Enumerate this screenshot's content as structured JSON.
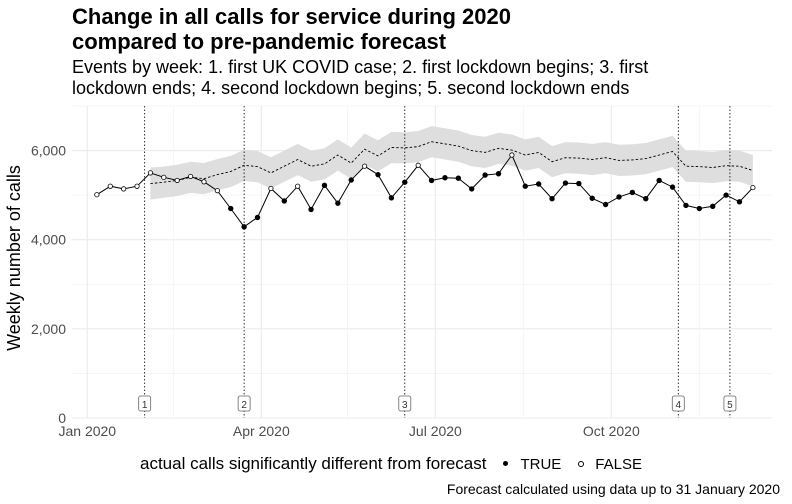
{
  "title_line1": "Change in all calls for service during 2020",
  "title_line2": "compared to pre-pandemic forecast",
  "subtitle_line1": "Events by week: 1. first UK COVID case; 2. first lockdown begins; 3. first",
  "subtitle_line2": "lockdown ends; 4. second lockdown begins; 5. second lockdown ends",
  "caption": "Forecast calculated using data up to 31 January 2020",
  "legend": {
    "title": "actual calls significantly different from forecast",
    "true_label": "TRUE",
    "false_label": "FALSE"
  },
  "colors": {
    "band": "#dedede",
    "grid": "#ebebeb",
    "line": "#000000"
  },
  "chart_data": {
    "type": "line",
    "ylabel": "Weekly number of calls",
    "xlabel": "",
    "ylim": [
      0,
      7000
    ],
    "xlim": [
      "2019-12-24",
      "2020-12-24"
    ],
    "x_ticks": [
      {
        "date": "2020-01-01",
        "label": "Jan 2020"
      },
      {
        "date": "2020-04-01",
        "label": "Apr 2020"
      },
      {
        "date": "2020-07-01",
        "label": "Jul 2020"
      },
      {
        "date": "2020-10-01",
        "label": "Oct 2020"
      }
    ],
    "y_ticks": [
      {
        "value": 0,
        "label": "0"
      },
      {
        "value": 2000,
        "label": "2,000"
      },
      {
        "value": 4000,
        "label": "4,000"
      },
      {
        "value": 6000,
        "label": "6,000"
      }
    ],
    "events": [
      {
        "label": "1",
        "date": "2020-01-31"
      },
      {
        "label": "2",
        "date": "2020-03-23"
      },
      {
        "label": "3",
        "date": "2020-06-15"
      },
      {
        "label": "4",
        "date": "2020-11-05"
      },
      {
        "label": "5",
        "date": "2020-12-02"
      }
    ],
    "actual": {
      "dates": [
        "2020-01-06",
        "2020-01-13",
        "2020-01-20",
        "2020-01-27",
        "2020-02-03",
        "2020-02-10",
        "2020-02-17",
        "2020-02-24",
        "2020-03-02",
        "2020-03-09",
        "2020-03-16",
        "2020-03-23",
        "2020-03-30",
        "2020-04-06",
        "2020-04-13",
        "2020-04-20",
        "2020-04-27",
        "2020-05-04",
        "2020-05-11",
        "2020-05-18",
        "2020-05-25",
        "2020-06-01",
        "2020-06-08",
        "2020-06-15",
        "2020-06-22",
        "2020-06-29",
        "2020-07-06",
        "2020-07-13",
        "2020-07-20",
        "2020-07-27",
        "2020-08-03",
        "2020-08-10",
        "2020-08-17",
        "2020-08-24",
        "2020-08-31",
        "2020-09-07",
        "2020-09-14",
        "2020-09-21",
        "2020-09-28",
        "2020-10-05",
        "2020-10-12",
        "2020-10-19",
        "2020-10-26",
        "2020-11-02",
        "2020-11-09",
        "2020-11-16",
        "2020-11-23",
        "2020-11-30",
        "2020-12-07",
        "2020-12-14"
      ],
      "values": [
        5010,
        5200,
        5140,
        5200,
        5500,
        5400,
        5330,
        5420,
        5300,
        5100,
        4700,
        4290,
        4500,
        5150,
        4870,
        5200,
        4680,
        5220,
        4820,
        5340,
        5650,
        5460,
        4940,
        5290,
        5670,
        5330,
        5390,
        5380,
        5140,
        5450,
        5480,
        5900,
        5200,
        5250,
        4920,
        5270,
        5260,
        4930,
        4790,
        4960,
        5060,
        4920,
        5330,
        5180,
        4770,
        4700,
        4750,
        5000,
        4850,
        5170
      ],
      "significant": [
        false,
        false,
        false,
        false,
        false,
        false,
        false,
        false,
        false,
        false,
        true,
        true,
        true,
        false,
        true,
        false,
        true,
        true,
        true,
        true,
        false,
        true,
        true,
        true,
        false,
        true,
        true,
        true,
        true,
        true,
        true,
        false,
        true,
        true,
        true,
        true,
        true,
        true,
        true,
        true,
        true,
        true,
        true,
        true,
        true,
        true,
        true,
        true,
        true,
        false
      ]
    },
    "forecast": {
      "dates": [
        "2020-02-03",
        "2020-02-10",
        "2020-02-17",
        "2020-02-24",
        "2020-03-02",
        "2020-03-09",
        "2020-03-16",
        "2020-03-23",
        "2020-03-30",
        "2020-04-06",
        "2020-04-13",
        "2020-04-20",
        "2020-04-27",
        "2020-05-04",
        "2020-05-11",
        "2020-05-18",
        "2020-05-25",
        "2020-06-01",
        "2020-06-08",
        "2020-06-15",
        "2020-06-22",
        "2020-06-29",
        "2020-07-06",
        "2020-07-13",
        "2020-07-20",
        "2020-07-27",
        "2020-08-03",
        "2020-08-10",
        "2020-08-17",
        "2020-08-24",
        "2020-08-31",
        "2020-09-07",
        "2020-09-14",
        "2020-09-21",
        "2020-09-28",
        "2020-10-05",
        "2020-10-12",
        "2020-10-19",
        "2020-10-26",
        "2020-11-02",
        "2020-11-09",
        "2020-11-16",
        "2020-11-23",
        "2020-11-30",
        "2020-12-07",
        "2020-12-14"
      ],
      "values": [
        5260,
        5290,
        5330,
        5400,
        5370,
        5460,
        5530,
        5670,
        5640,
        5500,
        5650,
        5800,
        5650,
        5700,
        5900,
        5720,
        6030,
        5880,
        6070,
        6060,
        6090,
        6200,
        6150,
        6100,
        6000,
        5960,
        6050,
        6010,
        5900,
        5960,
        5750,
        5840,
        5830,
        5800,
        5840,
        5780,
        5790,
        5820,
        5900,
        5980,
        5650,
        5640,
        5620,
        5660,
        5650,
        5550
      ],
      "lower": [
        4900,
        4940,
        4980,
        5050,
        5020,
        5110,
        5180,
        5320,
        5290,
        5150,
        5300,
        5450,
        5300,
        5350,
        5550,
        5370,
        5680,
        5530,
        5720,
        5710,
        5740,
        5850,
        5800,
        5750,
        5650,
        5610,
        5700,
        5660,
        5550,
        5610,
        5400,
        5490,
        5480,
        5450,
        5490,
        5430,
        5440,
        5470,
        5550,
        5630,
        5300,
        5290,
        5270,
        5310,
        5300,
        5200
      ],
      "upper": [
        5620,
        5640,
        5680,
        5750,
        5720,
        5810,
        5880,
        6020,
        5990,
        5850,
        6000,
        6150,
        6000,
        6050,
        6250,
        6070,
        6380,
        6230,
        6420,
        6410,
        6440,
        6550,
        6500,
        6450,
        6350,
        6310,
        6400,
        6360,
        6250,
        6310,
        6100,
        6190,
        6180,
        6150,
        6190,
        6130,
        6140,
        6170,
        6250,
        6330,
        6000,
        5990,
        5970,
        6010,
        6000,
        5900
      ]
    }
  }
}
